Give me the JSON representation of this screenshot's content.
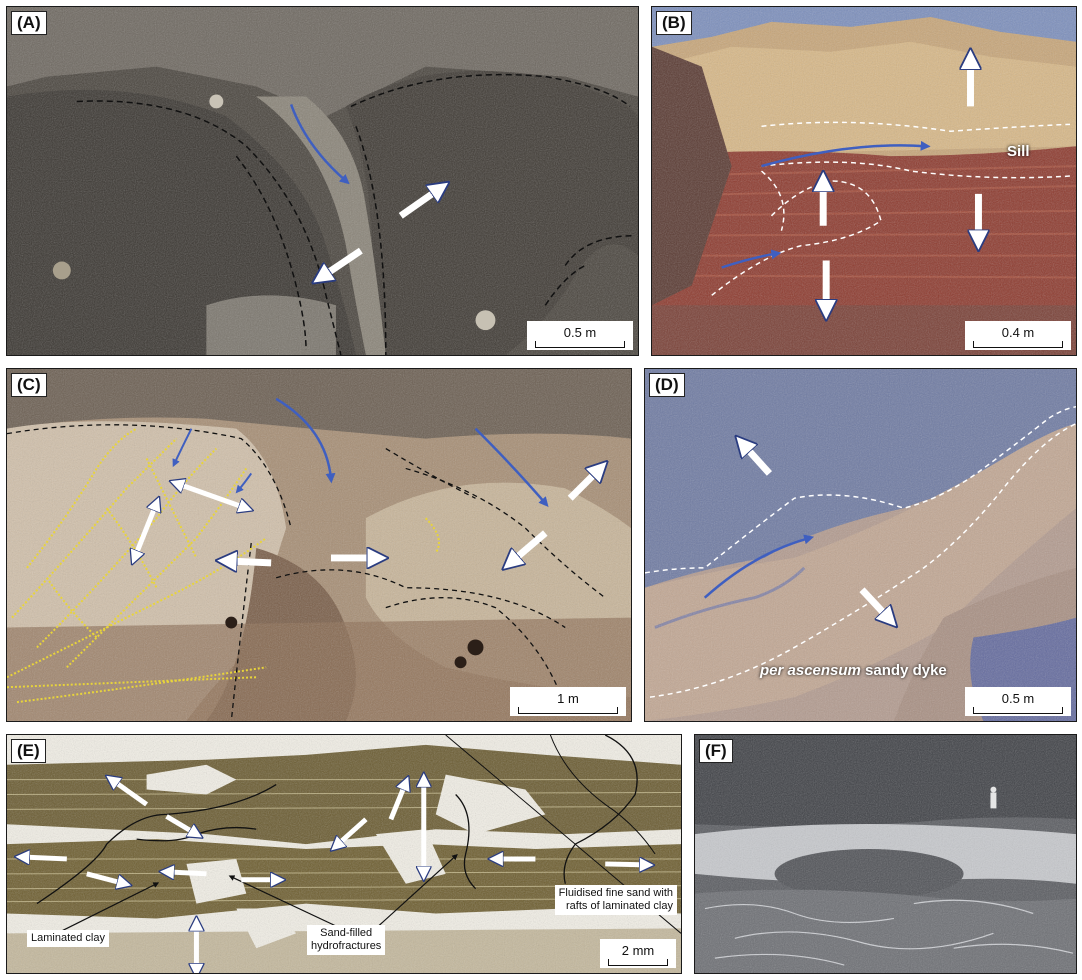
{
  "panels": {
    "a": {
      "letter": "(A)",
      "scale": "0.5 m"
    },
    "b": {
      "letter": "(B)",
      "scale": "0.4 m",
      "sill_label": "Sill"
    },
    "c": {
      "letter": "(C)",
      "scale": "1 m"
    },
    "d": {
      "letter": "(D)",
      "scale": "0.5 m",
      "dyke_label_italic": "per ascensum",
      "dyke_label_rest": " sandy dyke"
    },
    "e": {
      "letter": "(E)",
      "scale": "2 mm",
      "label_laminated": "Laminated clay",
      "label_sand_filled": "Sand-filled\nhydrofractures",
      "label_fluidised_1": "Fluidised fine sand with",
      "label_fluidised_2": "rafts of laminated clay"
    },
    "f": {
      "letter": "(F)"
    }
  },
  "colors": {
    "arrow_white": "#ffffff",
    "arrow_blue": "#3f5fc0",
    "dashed_white": "#ffffff",
    "dashed_black": "#111111",
    "dotted_yellow": "#e8d43a"
  }
}
